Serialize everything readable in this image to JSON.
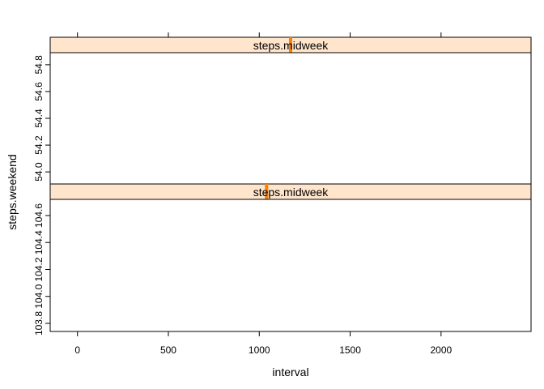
{
  "chart_data": {
    "type": "line",
    "layout": "lattice-panels-stacked",
    "xlabel": "interval",
    "ylabel": "steps.weekend",
    "x_ticks": [
      0,
      500,
      1000,
      1500,
      2000
    ],
    "x_tick_labels": [
      "0",
      "500",
      "1000",
      "1500",
      "2000"
    ],
    "xlim": [
      -150,
      2495
    ],
    "grid": false,
    "legend": "none",
    "strip_fill": "#ffe5cc",
    "strip_indicator_color": "#ff7f00",
    "panels": [
      {
        "position": "top",
        "strip_label": "steps.midweek",
        "strip_indicator_fraction": 0.5,
        "ylim": [
          53.91,
          54.89
        ],
        "y_ticks": [
          54.0,
          54.2,
          54.4,
          54.6,
          54.8
        ],
        "y_tick_labels": [
          "54.0",
          "54.2",
          "54.4",
          "54.6",
          "54.8"
        ],
        "series": []
      },
      {
        "position": "bottom",
        "strip_label": "steps.midweek",
        "strip_indicator_fraction": 0.45,
        "ylim": [
          103.74,
          104.72
        ],
        "y_ticks": [
          103.8,
          104.0,
          104.2,
          104.4,
          104.6
        ],
        "y_tick_labels": [
          "103.8",
          "104.0",
          "104.2",
          "104.4",
          "104.6"
        ],
        "series": []
      }
    ]
  }
}
